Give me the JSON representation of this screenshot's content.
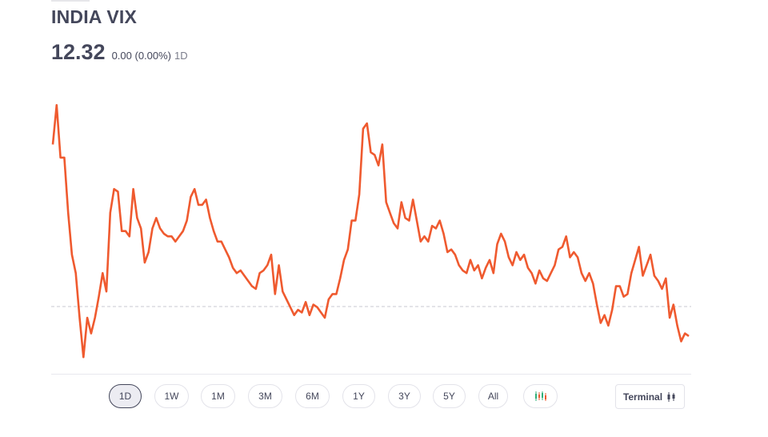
{
  "header": {
    "title": "INDIA VIX",
    "price": "12.32",
    "change": "0.00 (0.00%)",
    "period": "1D"
  },
  "range_buttons": [
    "1D",
    "1W",
    "1M",
    "3M",
    "6M",
    "1Y",
    "3Y",
    "5Y",
    "All"
  ],
  "active_range": "1D",
  "terminal_label": "Terminal",
  "colors": {
    "line": "#ef5a2f",
    "active_pill_border": "#44475b",
    "candle_green": "#2fb07a",
    "candle_red": "#ef5a2f"
  },
  "chart_data": {
    "type": "line",
    "reference_line": "previous-close dashed line",
    "grid": false,
    "y_relative": [
      0.84,
      0.99,
      0.79,
      0.79,
      0.58,
      0.42,
      0.35,
      0.18,
      0.03,
      0.18,
      0.12,
      0.18,
      0.26,
      0.35,
      0.28,
      0.58,
      0.67,
      0.66,
      0.51,
      0.51,
      0.49,
      0.67,
      0.56,
      0.52,
      0.39,
      0.43,
      0.52,
      0.56,
      0.52,
      0.5,
      0.49,
      0.49,
      0.47,
      0.49,
      0.51,
      0.55,
      0.64,
      0.67,
      0.61,
      0.61,
      0.63,
      0.56,
      0.51,
      0.47,
      0.47,
      0.44,
      0.41,
      0.37,
      0.35,
      0.36,
      0.34,
      0.32,
      0.3,
      0.29,
      0.35,
      0.36,
      0.38,
      0.42,
      0.27,
      0.38,
      0.28,
      0.25,
      0.22,
      0.19,
      0.21,
      0.2,
      0.24,
      0.19,
      0.23,
      0.22,
      0.2,
      0.18,
      0.25,
      0.27,
      0.27,
      0.33,
      0.4,
      0.44,
      0.55,
      0.55,
      0.65,
      0.9,
      0.92,
      0.81,
      0.8,
      0.76,
      0.84,
      0.62,
      0.58,
      0.54,
      0.52,
      0.62,
      0.56,
      0.55,
      0.63,
      0.55,
      0.47,
      0.49,
      0.47,
      0.53,
      0.52,
      0.55,
      0.5,
      0.43,
      0.44,
      0.42,
      0.38,
      0.36,
      0.35,
      0.4,
      0.36,
      0.38,
      0.33,
      0.37,
      0.4,
      0.35,
      0.46,
      0.5,
      0.47,
      0.41,
      0.38,
      0.43,
      0.4,
      0.42,
      0.37,
      0.35,
      0.31,
      0.36,
      0.33,
      0.32,
      0.35,
      0.38,
      0.44,
      0.45,
      0.49,
      0.41,
      0.43,
      0.41,
      0.35,
      0.32,
      0.35,
      0.31,
      0.23,
      0.16,
      0.19,
      0.15,
      0.21,
      0.3,
      0.3,
      0.26,
      0.27,
      0.35,
      0.4,
      0.45,
      0.34,
      0.38,
      0.42,
      0.34,
      0.32,
      0.29,
      0.33,
      0.18,
      0.23,
      0.15,
      0.09,
      0.12,
      0.11
    ]
  }
}
